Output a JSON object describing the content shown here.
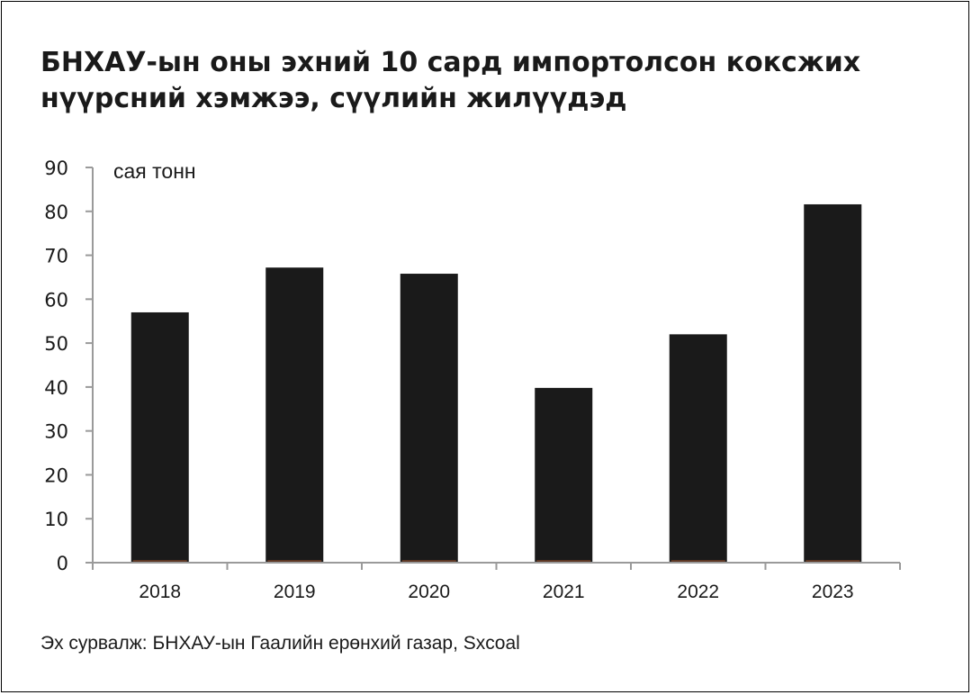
{
  "title_lines": [
    "БНХАУ-ын оны эхний 10 сард импортолсон коксжих",
    "нүүрсний хэмжээ, сүүлийн жилүүдэд"
  ],
  "source": "Эх сурвалж: БНХАУ-ын Гаалийн ерөнхий газар, Sxcoal",
  "chart_data": {
    "type": "bar",
    "title": "БНХАУ-ын оны эхний 10 сард импортолсон коксжих нүүрсний хэмжээ, сүүлийн жилүүдэд",
    "ylabel": "сая тонн",
    "xlabel": "",
    "categories": [
      "2018",
      "2019",
      "2020",
      "2021",
      "2022",
      "2023"
    ],
    "values": [
      57,
      67.2,
      65.8,
      39.8,
      52,
      81.6
    ],
    "ylim": [
      0,
      90
    ],
    "yticks": [
      0,
      10,
      20,
      30,
      40,
      50,
      60,
      70,
      80,
      90
    ],
    "grid": false,
    "legend": "none",
    "colors": {
      "bar": "#1a1a1a",
      "axis": "#9a9a9a",
      "bar_base": "#8a4a2a"
    }
  }
}
